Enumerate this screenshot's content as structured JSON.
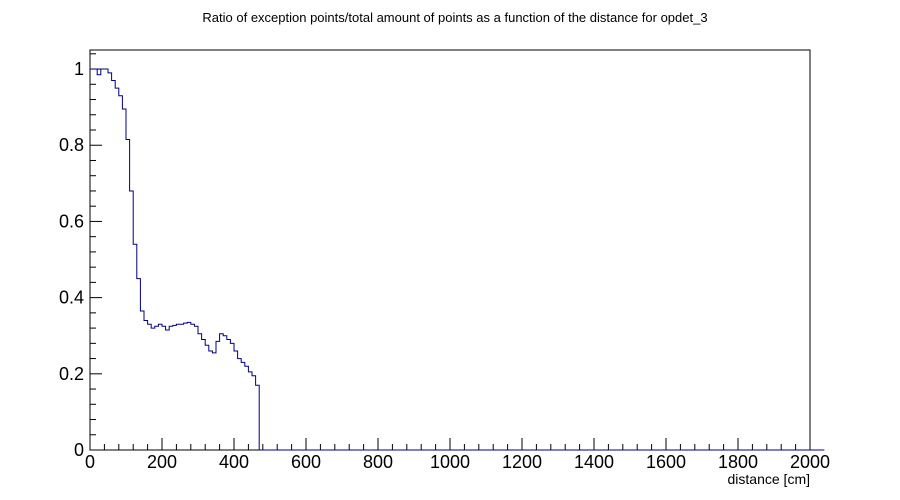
{
  "chart_data": {
    "type": "line",
    "title": "Ratio of exception points/total amount of points as a function of the distance for opdet_3",
    "xlabel": "distance [cm]",
    "ylabel": "",
    "xlim": [
      0,
      2000
    ],
    "ylim": [
      0,
      1.05
    ],
    "x_ticks": [
      0,
      200,
      400,
      600,
      800,
      1000,
      1200,
      1400,
      1600,
      1800,
      2000
    ],
    "x_tick_labels": [
      "0",
      "200",
      "400",
      "600",
      "800",
      "1000",
      "1200",
      "1400",
      "1600",
      "1800",
      "2000"
    ],
    "y_ticks": [
      0,
      0.2,
      0.4,
      0.6,
      0.8,
      1
    ],
    "y_tick_labels": [
      "0",
      "0.2",
      "0.4",
      "0.6",
      "0.8",
      "1"
    ],
    "grid": false,
    "line_color": "#000080",
    "bin_width": 10,
    "series": [
      {
        "values": [
          1.0,
          1.0,
          0.985,
          1.0,
          1.0,
          0.99,
          0.97,
          0.95,
          0.93,
          0.895,
          0.815,
          0.68,
          0.54,
          0.45,
          0.365,
          0.34,
          0.33,
          0.32,
          0.325,
          0.33,
          0.325,
          0.315,
          0.325,
          0.327,
          0.33,
          0.33,
          0.333,
          0.335,
          0.33,
          0.325,
          0.305,
          0.29,
          0.275,
          0.26,
          0.255,
          0.285,
          0.305,
          0.3,
          0.29,
          0.28,
          0.26,
          0.24,
          0.23,
          0.22,
          0.205,
          0.195,
          0.17,
          0.0,
          0.0,
          0.0,
          0.0,
          0.0,
          0.0,
          0.0,
          0.0,
          0.0,
          0.0,
          0.0,
          0.0,
          0.0,
          0.0,
          0.0,
          0.0,
          0.0,
          0.0,
          0.0,
          0.0,
          0.0,
          0.0,
          0.0,
          0.0,
          0.0,
          0.0,
          0.0,
          0.0,
          0.0,
          0.0,
          0.0,
          0.0,
          0.0,
          0.0,
          0.0,
          0.0,
          0.0,
          0.0,
          0.0,
          0.0,
          0.0,
          0.0,
          0.0,
          0.0,
          0.0,
          0.0,
          0.0,
          0.0,
          0.0,
          0.0,
          0.0,
          0.0,
          0.0,
          0.0,
          0.0,
          0.0,
          0.0,
          0.0,
          0.0,
          0.0,
          0.0,
          0.0,
          0.0,
          0.0,
          0.0,
          0.0,
          0.0,
          0.0,
          0.0,
          0.0,
          0.0,
          0.0,
          0.0,
          0.0,
          0.0,
          0.0,
          0.0,
          0.0,
          0.0,
          0.0,
          0.0,
          0.0,
          0.0,
          0.0,
          0.0,
          0.0,
          0.0,
          0.0,
          0.0,
          0.0,
          0.0,
          0.0,
          0.0,
          0.0,
          0.0,
          0.0,
          0.0,
          0.0,
          0.0,
          0.0,
          0.0,
          0.0,
          0.0,
          0.0,
          0.0,
          0.0,
          0.0,
          0.0,
          0.0,
          0.0,
          0.0,
          0.0,
          0.0,
          0.0,
          0.0,
          0.0,
          0.0,
          0.0,
          0.0,
          0.0,
          0.0,
          0.0,
          0.0,
          0.0,
          0.0,
          0.0,
          0.0,
          0.0,
          0.0,
          0.0,
          0.0,
          0.0,
          0.0,
          0.0,
          0.0,
          0.0,
          0.0,
          0.0,
          0.0,
          0.0,
          0.0,
          0.0,
          0.0,
          0.0,
          0.0,
          0.0,
          0.0,
          0.0,
          0.0,
          0.0,
          0.0,
          0.0,
          0.0,
          0.0,
          0.0,
          0.0,
          0.0
        ]
      }
    ]
  }
}
